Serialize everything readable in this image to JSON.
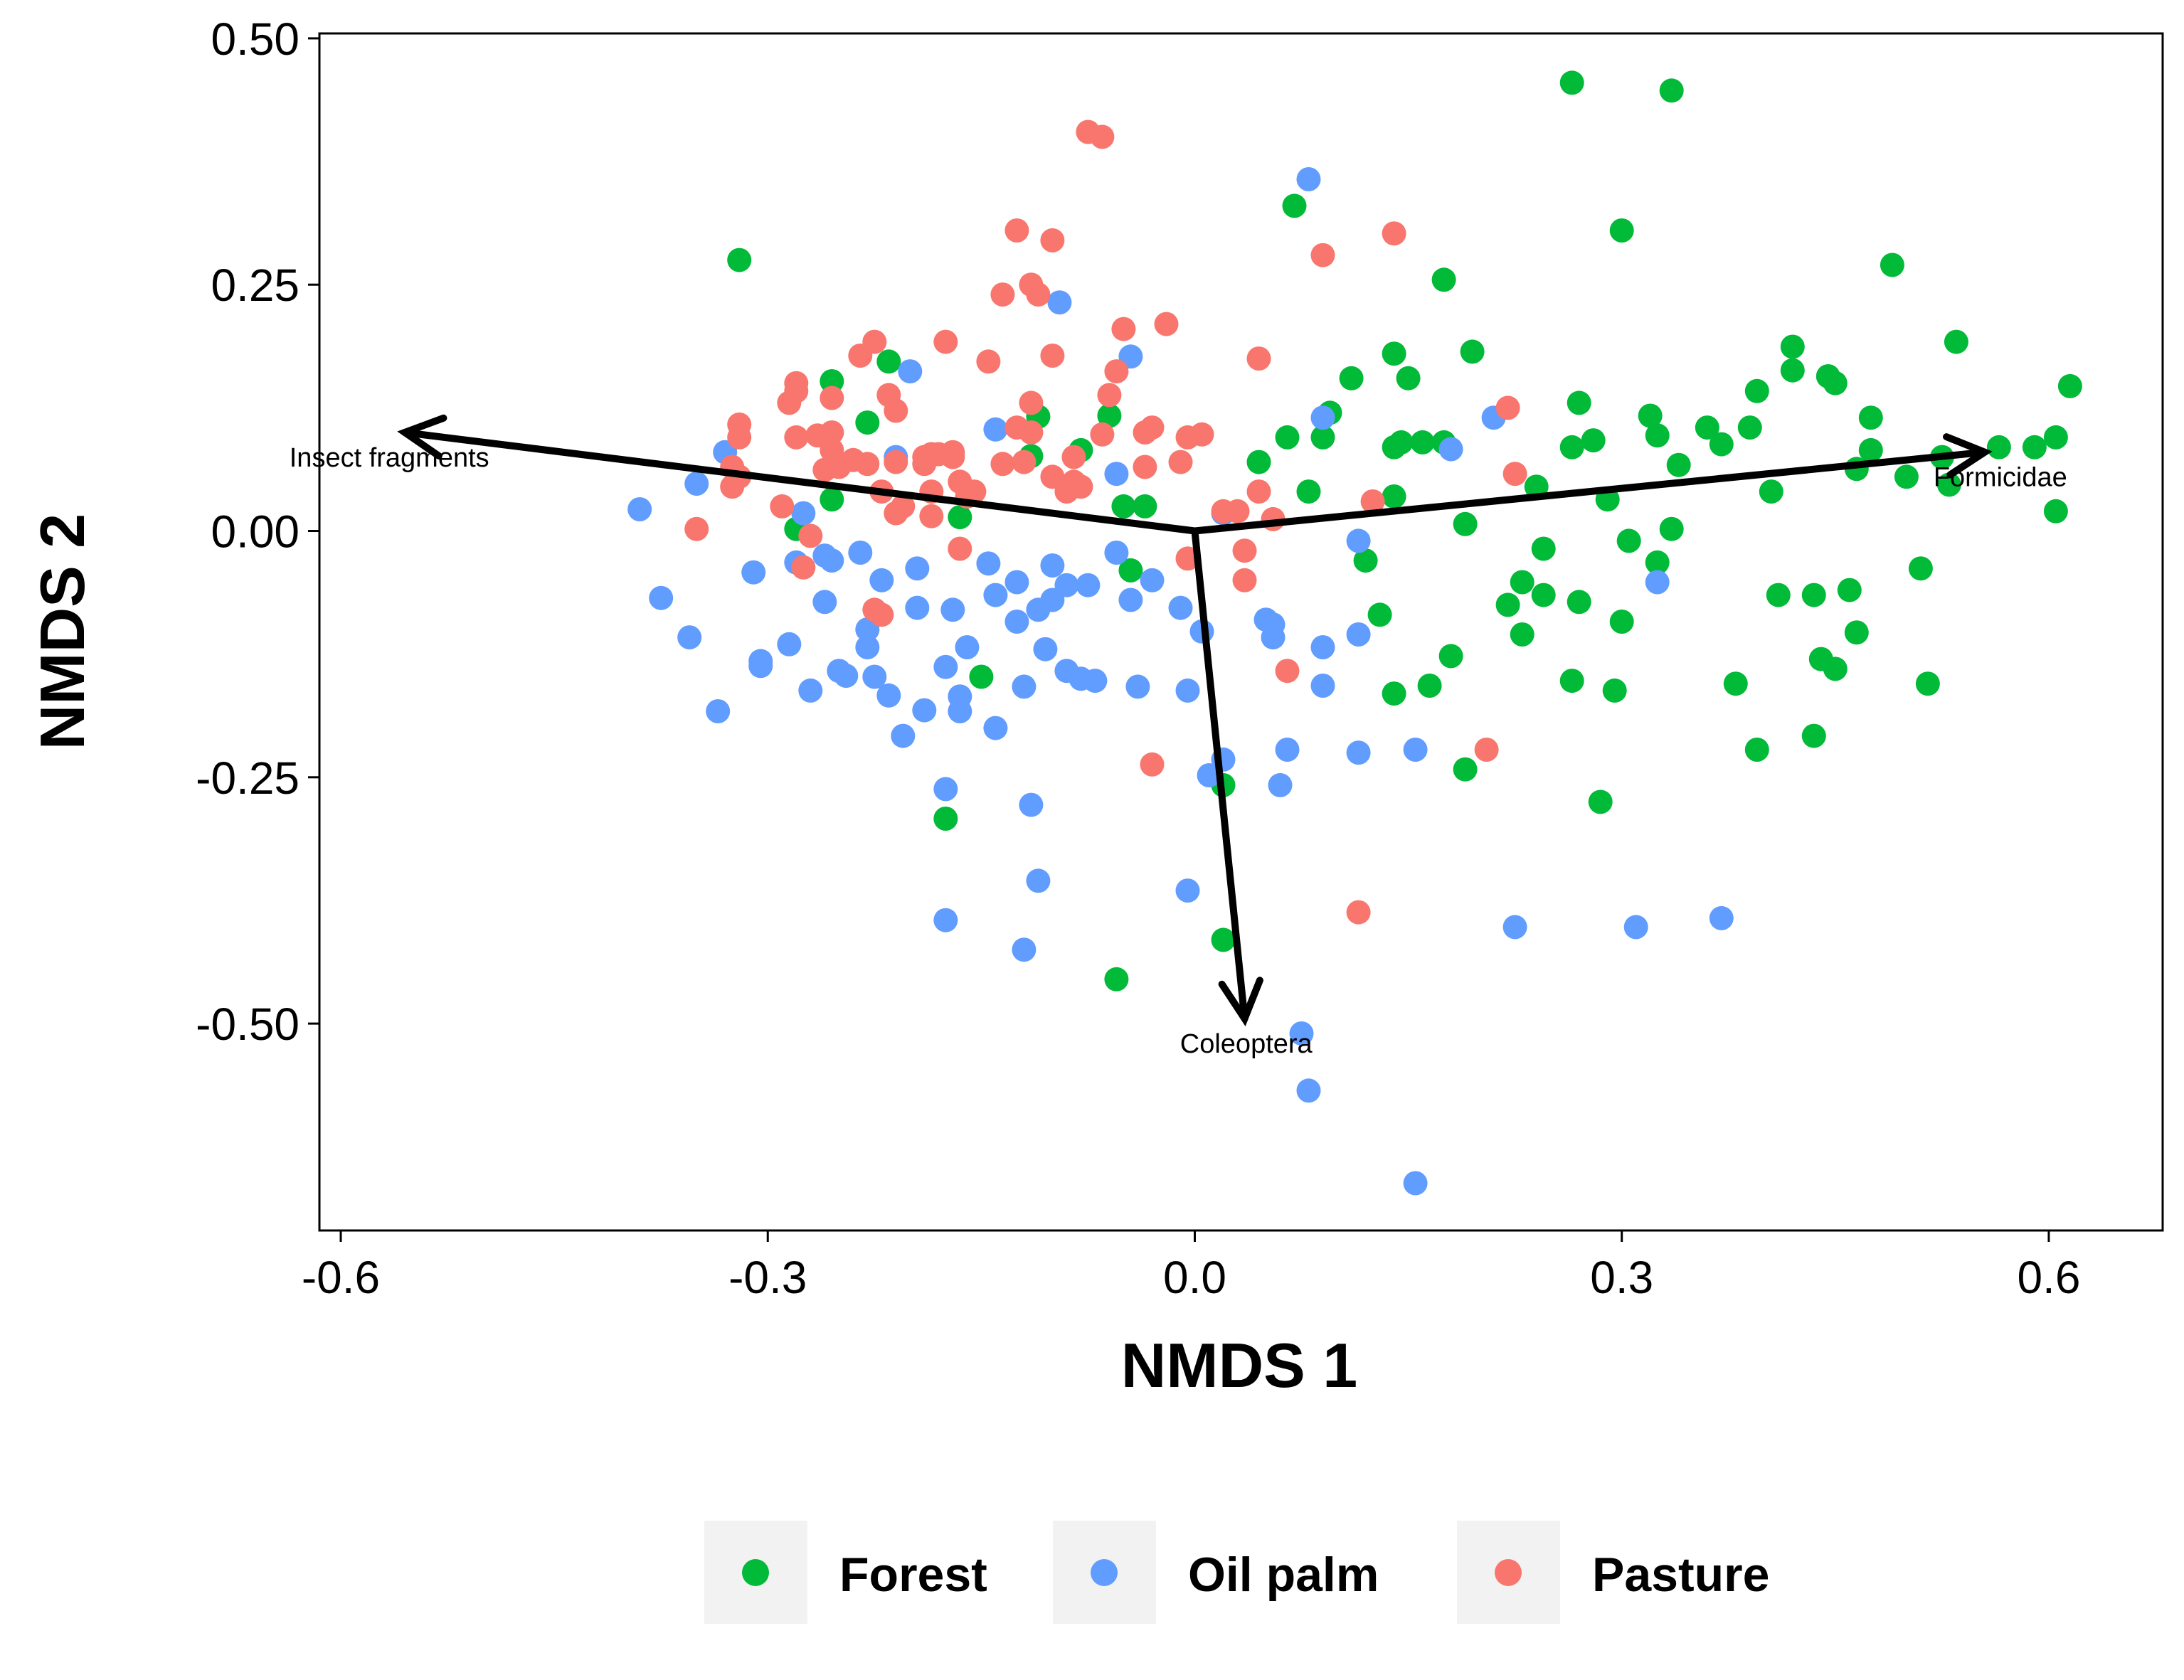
{
  "chart_data": {
    "type": "scatter",
    "xlabel": "NMDS 1",
    "ylabel": "NMDS 2",
    "xlim": [
      -0.615,
      0.68
    ],
    "ylim": [
      -0.71,
      0.505
    ],
    "x_ticks": [
      {
        "value": -0.6,
        "label": "-0.6"
      },
      {
        "value": -0.3,
        "label": "-0.3"
      },
      {
        "value": 0.0,
        "label": "0.0"
      },
      {
        "value": 0.3,
        "label": "0.3"
      },
      {
        "value": 0.6,
        "label": "0.6"
      }
    ],
    "y_ticks": [
      {
        "value": 0.5,
        "label": "0.50"
      },
      {
        "value": 0.25,
        "label": "0.25"
      },
      {
        "value": 0.0,
        "label": "0.00"
      },
      {
        "value": -0.25,
        "label": "-0.25"
      },
      {
        "value": -0.5,
        "label": "-0.50"
      }
    ],
    "grid": false,
    "legend_position": "bottom",
    "vectors": [
      {
        "label": "Insect fragments",
        "x": -0.555,
        "y": 0.1
      },
      {
        "label": "Formicidae",
        "x": 0.555,
        "y": 0.08
      },
      {
        "label": "Coleoptera",
        "x": 0.035,
        "y": -0.495
      }
    ],
    "series": [
      {
        "name": "Forest",
        "color": "#00BA38",
        "points": [
          [
            -0.32,
            0.275
          ],
          [
            -0.255,
            0.152
          ],
          [
            -0.215,
            0.172
          ],
          [
            -0.23,
            0.11
          ],
          [
            -0.255,
            0.032
          ],
          [
            -0.28,
            0.002
          ],
          [
            -0.165,
            0.014
          ],
          [
            -0.15,
            -0.148
          ],
          [
            -0.175,
            -0.292
          ],
          [
            -0.11,
            0.116
          ],
          [
            -0.115,
            0.076
          ],
          [
            -0.08,
            0.082
          ],
          [
            -0.06,
            0.117
          ],
          [
            -0.05,
            0.025
          ],
          [
            -0.035,
            0.025
          ],
          [
            -0.045,
            -0.04
          ],
          [
            0.02,
            -0.258
          ],
          [
            0.02,
            -0.415
          ],
          [
            -0.055,
            -0.455
          ],
          [
            0.07,
            0.33
          ],
          [
            0.065,
            0.095
          ],
          [
            0.045,
            0.07
          ],
          [
            0.08,
            0.04
          ],
          [
            0.095,
            0.12
          ],
          [
            0.09,
            0.095
          ],
          [
            0.11,
            0.155
          ],
          [
            0.12,
            -0.03
          ],
          [
            0.13,
            -0.085
          ],
          [
            0.14,
            0.18
          ],
          [
            0.15,
            0.155
          ],
          [
            0.145,
            0.09
          ],
          [
            0.14,
            0.085
          ],
          [
            0.16,
            0.09
          ],
          [
            0.14,
            0.035
          ],
          [
            0.14,
            -0.165
          ],
          [
            0.165,
            -0.157
          ],
          [
            0.175,
            0.255
          ],
          [
            0.175,
            0.09
          ],
          [
            0.19,
            0.007
          ],
          [
            0.18,
            -0.127
          ],
          [
            0.195,
            0.182
          ],
          [
            0.19,
            -0.242
          ],
          [
            0.22,
            -0.075
          ],
          [
            0.23,
            -0.052
          ],
          [
            0.23,
            -0.105
          ],
          [
            0.24,
            0.045
          ],
          [
            0.245,
            -0.018
          ],
          [
            0.245,
            -0.065
          ],
          [
            0.265,
            0.455
          ],
          [
            0.27,
            0.13
          ],
          [
            0.265,
            0.085
          ],
          [
            0.28,
            0.092
          ],
          [
            0.27,
            -0.072
          ],
          [
            0.265,
            -0.152
          ],
          [
            0.29,
            0.032
          ],
          [
            0.295,
            -0.162
          ],
          [
            0.285,
            -0.275
          ],
          [
            0.3,
            0.305
          ],
          [
            0.305,
            -0.01
          ],
          [
            0.3,
            -0.092
          ],
          [
            0.32,
            0.117
          ],
          [
            0.325,
            0.097
          ],
          [
            0.325,
            -0.032
          ],
          [
            0.335,
            0.447
          ],
          [
            0.335,
            0.002
          ],
          [
            0.34,
            0.067
          ],
          [
            0.36,
            0.105
          ],
          [
            0.37,
            0.088
          ],
          [
            0.38,
            -0.155
          ],
          [
            0.39,
            0.105
          ],
          [
            0.395,
            0.142
          ],
          [
            0.395,
            -0.222
          ],
          [
            0.405,
            0.04
          ],
          [
            0.41,
            -0.065
          ],
          [
            0.42,
            0.187
          ],
          [
            0.42,
            0.163
          ],
          [
            0.435,
            -0.065
          ],
          [
            0.435,
            -0.208
          ],
          [
            0.44,
            -0.13
          ],
          [
            0.445,
            0.157
          ],
          [
            0.45,
            0.15
          ],
          [
            0.45,
            -0.14
          ],
          [
            0.46,
            -0.06
          ],
          [
            0.465,
            0.063
          ],
          [
            0.465,
            -0.103
          ],
          [
            0.475,
            0.115
          ],
          [
            0.475,
            0.082
          ],
          [
            0.49,
            0.27
          ],
          [
            0.5,
            0.055
          ],
          [
            0.51,
            -0.038
          ],
          [
            0.515,
            -0.155
          ],
          [
            0.53,
            0.047
          ],
          [
            0.535,
            0.192
          ],
          [
            0.525,
            0.075
          ],
          [
            0.565,
            0.085
          ],
          [
            0.59,
            0.085
          ],
          [
            0.605,
            0.095
          ],
          [
            0.605,
            0.02
          ],
          [
            0.615,
            0.147
          ]
        ]
      },
      {
        "name": "Oil palm",
        "color": "#619CFF",
        "points": [
          [
            -0.39,
            0.022
          ],
          [
            -0.375,
            -0.068
          ],
          [
            -0.355,
            -0.108
          ],
          [
            -0.35,
            0.048
          ],
          [
            -0.335,
            -0.183
          ],
          [
            -0.33,
            0.08
          ],
          [
            -0.31,
            -0.042
          ],
          [
            -0.305,
            -0.132
          ],
          [
            -0.305,
            -0.137
          ],
          [
            -0.285,
            -0.115
          ],
          [
            -0.28,
            -0.032
          ],
          [
            -0.275,
            0.018
          ],
          [
            -0.27,
            -0.162
          ],
          [
            -0.26,
            -0.025
          ],
          [
            -0.26,
            -0.072
          ],
          [
            -0.255,
            -0.03
          ],
          [
            -0.25,
            -0.142
          ],
          [
            -0.245,
            -0.147
          ],
          [
            -0.235,
            -0.022
          ],
          [
            -0.23,
            -0.118
          ],
          [
            -0.23,
            -0.1
          ],
          [
            -0.225,
            -0.148
          ],
          [
            -0.22,
            -0.05
          ],
          [
            -0.215,
            -0.167
          ],
          [
            -0.21,
            0.075
          ],
          [
            -0.205,
            -0.208
          ],
          [
            -0.2,
            0.162
          ],
          [
            -0.195,
            -0.038
          ],
          [
            -0.195,
            -0.078
          ],
          [
            -0.19,
            -0.182
          ],
          [
            -0.175,
            -0.138
          ],
          [
            -0.175,
            -0.262
          ],
          [
            -0.175,
            -0.395
          ],
          [
            -0.17,
            -0.08
          ],
          [
            -0.165,
            -0.168
          ],
          [
            -0.165,
            -0.183
          ],
          [
            -0.16,
            -0.118
          ],
          [
            -0.145,
            -0.033
          ],
          [
            -0.14,
            0.103
          ],
          [
            -0.14,
            -0.065
          ],
          [
            -0.14,
            -0.2
          ],
          [
            -0.125,
            -0.092
          ],
          [
            -0.125,
            -0.052
          ],
          [
            -0.12,
            -0.158
          ],
          [
            -0.12,
            -0.425
          ],
          [
            -0.115,
            -0.278
          ],
          [
            -0.11,
            -0.355
          ],
          [
            -0.11,
            -0.08
          ],
          [
            -0.105,
            -0.12
          ],
          [
            -0.1,
            -0.035
          ],
          [
            -0.1,
            -0.07
          ],
          [
            -0.095,
            0.232
          ],
          [
            -0.09,
            -0.055
          ],
          [
            -0.09,
            -0.142
          ],
          [
            -0.08,
            -0.15
          ],
          [
            -0.075,
            -0.055
          ],
          [
            -0.07,
            -0.152
          ],
          [
            -0.055,
            0.058
          ],
          [
            -0.055,
            -0.022
          ],
          [
            -0.045,
            0.177
          ],
          [
            -0.045,
            -0.07
          ],
          [
            -0.04,
            -0.158
          ],
          [
            -0.03,
            -0.05
          ],
          [
            -0.01,
            -0.078
          ],
          [
            -0.005,
            -0.162
          ],
          [
            -0.005,
            -0.365
          ],
          [
            0.005,
            -0.102
          ],
          [
            0.01,
            -0.248
          ],
          [
            0.02,
            -0.232
          ],
          [
            0.02,
            0.018
          ],
          [
            0.05,
            -0.09
          ],
          [
            0.055,
            -0.108
          ],
          [
            0.055,
            -0.095
          ],
          [
            0.06,
            -0.258
          ],
          [
            0.065,
            -0.222
          ],
          [
            0.075,
            -0.51
          ],
          [
            0.08,
            -0.568
          ],
          [
            0.08,
            0.357
          ],
          [
            0.09,
            -0.118
          ],
          [
            0.09,
            -0.157
          ],
          [
            0.09,
            0.115
          ],
          [
            0.115,
            -0.01
          ],
          [
            0.115,
            -0.105
          ],
          [
            0.115,
            -0.225
          ],
          [
            0.155,
            -0.222
          ],
          [
            0.155,
            -0.662
          ],
          [
            0.18,
            0.083
          ],
          [
            0.21,
            0.115
          ],
          [
            0.225,
            -0.402
          ],
          [
            0.31,
            -0.402
          ],
          [
            0.325,
            -0.052
          ],
          [
            0.37,
            -0.393
          ]
        ]
      },
      {
        "name": "Pasture",
        "color": "#F8766D",
        "points": [
          [
            -0.35,
            0.002
          ],
          [
            -0.325,
            0.045
          ],
          [
            -0.325,
            0.065
          ],
          [
            -0.32,
            0.055
          ],
          [
            -0.32,
            0.095
          ],
          [
            -0.32,
            0.108
          ],
          [
            -0.29,
            0.025
          ],
          [
            -0.285,
            0.13
          ],
          [
            -0.28,
            0.15
          ],
          [
            -0.28,
            0.142
          ],
          [
            -0.28,
            0.095
          ],
          [
            -0.275,
            -0.037
          ],
          [
            -0.27,
            -0.005
          ],
          [
            -0.265,
            0.097
          ],
          [
            -0.26,
            0.062
          ],
          [
            -0.255,
            0.1
          ],
          [
            -0.255,
            0.082
          ],
          [
            -0.255,
            0.135
          ],
          [
            -0.25,
            0.065
          ],
          [
            -0.24,
            0.072
          ],
          [
            -0.235,
            0.178
          ],
          [
            -0.23,
            0.068
          ],
          [
            -0.225,
            0.192
          ],
          [
            -0.225,
            -0.08
          ],
          [
            -0.22,
            -0.085
          ],
          [
            -0.22,
            0.04
          ],
          [
            -0.215,
            0.138
          ],
          [
            -0.21,
            0.122
          ],
          [
            -0.21,
            0.07
          ],
          [
            -0.21,
            0.018
          ],
          [
            -0.205,
            0.025
          ],
          [
            -0.19,
            0.068
          ],
          [
            -0.19,
            0.075
          ],
          [
            -0.185,
            0.078
          ],
          [
            -0.185,
            0.04
          ],
          [
            -0.185,
            0.015
          ],
          [
            -0.18,
            0.078
          ],
          [
            -0.175,
            0.192
          ],
          [
            -0.17,
            0.075
          ],
          [
            -0.17,
            0.08
          ],
          [
            -0.165,
            0.05
          ],
          [
            -0.165,
            -0.018
          ],
          [
            -0.16,
            0.035
          ],
          [
            -0.155,
            0.04
          ],
          [
            -0.145,
            0.172
          ],
          [
            -0.135,
            0.068
          ],
          [
            -0.135,
            0.24
          ],
          [
            -0.125,
            0.105
          ],
          [
            -0.125,
            0.305
          ],
          [
            -0.12,
            0.07
          ],
          [
            -0.115,
            0.13
          ],
          [
            -0.115,
            0.1
          ],
          [
            -0.115,
            0.25
          ],
          [
            -0.11,
            0.24
          ],
          [
            -0.1,
            0.055
          ],
          [
            -0.1,
            0.178
          ],
          [
            -0.1,
            0.295
          ],
          [
            -0.09,
            0.04
          ],
          [
            -0.085,
            0.075
          ],
          [
            -0.085,
            0.05
          ],
          [
            -0.08,
            0.045
          ],
          [
            -0.075,
            0.405
          ],
          [
            -0.065,
            0.4
          ],
          [
            -0.065,
            0.098
          ],
          [
            -0.06,
            0.138
          ],
          [
            -0.055,
            0.162
          ],
          [
            -0.05,
            0.205
          ],
          [
            -0.035,
            0.1
          ],
          [
            -0.035,
            0.065
          ],
          [
            -0.03,
            0.105
          ],
          [
            -0.02,
            0.21
          ],
          [
            -0.01,
            0.07
          ],
          [
            -0.005,
            0.095
          ],
          [
            0.005,
            0.098
          ],
          [
            -0.005,
            -0.028
          ],
          [
            -0.03,
            -0.237
          ],
          [
            0.02,
            0.02
          ],
          [
            0.03,
            0.02
          ],
          [
            0.035,
            -0.02
          ],
          [
            0.035,
            -0.05
          ],
          [
            0.045,
            0.175
          ],
          [
            0.045,
            0.04
          ],
          [
            0.055,
            0.012
          ],
          [
            0.065,
            -0.142
          ],
          [
            0.09,
            0.28
          ],
          [
            0.115,
            -0.387
          ],
          [
            0.125,
            0.03
          ],
          [
            0.14,
            0.302
          ],
          [
            0.205,
            -0.222
          ],
          [
            0.22,
            0.125
          ],
          [
            0.225,
            0.058
          ]
        ]
      }
    ]
  }
}
